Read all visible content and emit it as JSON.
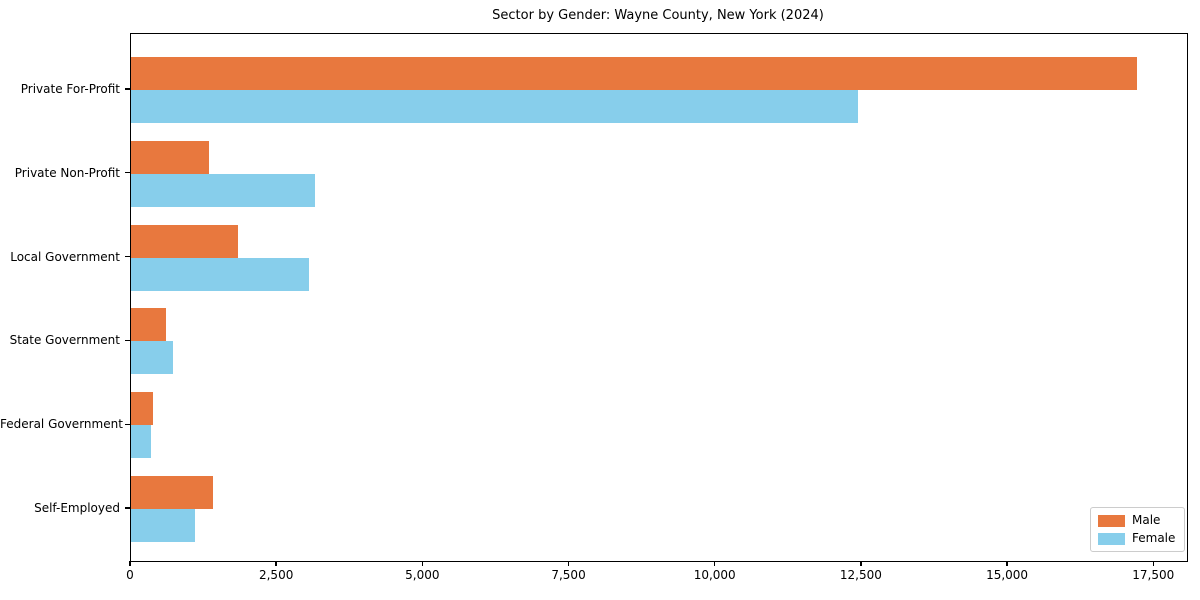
{
  "chart_data": {
    "type": "bar",
    "orientation": "horizontal",
    "title": "Sector by Gender: Wayne County, New York (2024)",
    "xlabel": "",
    "ylabel": "",
    "grid": false,
    "categories": [
      "Private For-Profit",
      "Private Non-Profit",
      "Local Government",
      "State Government",
      "Federal Government",
      "Self-Employed"
    ],
    "series": [
      {
        "name": "Male",
        "color": "#e8783e",
        "values": [
          17200,
          1330,
          1830,
          600,
          380,
          1400
        ]
      },
      {
        "name": "Female",
        "color": "#87ceeb",
        "values": [
          12430,
          3140,
          3040,
          720,
          340,
          1090
        ]
      }
    ],
    "xlim": [
      0,
      18060
    ],
    "x_ticks": [
      {
        "value": 0,
        "label": "0"
      },
      {
        "value": 2500,
        "label": "2,500"
      },
      {
        "value": 5000,
        "label": "5,000"
      },
      {
        "value": 7500,
        "label": "7,500"
      },
      {
        "value": 10000,
        "label": "10,000"
      },
      {
        "value": 12500,
        "label": "12,500"
      },
      {
        "value": 15000,
        "label": "15,000"
      },
      {
        "value": 17500,
        "label": "17,500"
      }
    ],
    "legend": {
      "position": "lower right",
      "entries": [
        "Male",
        "Female"
      ]
    }
  }
}
